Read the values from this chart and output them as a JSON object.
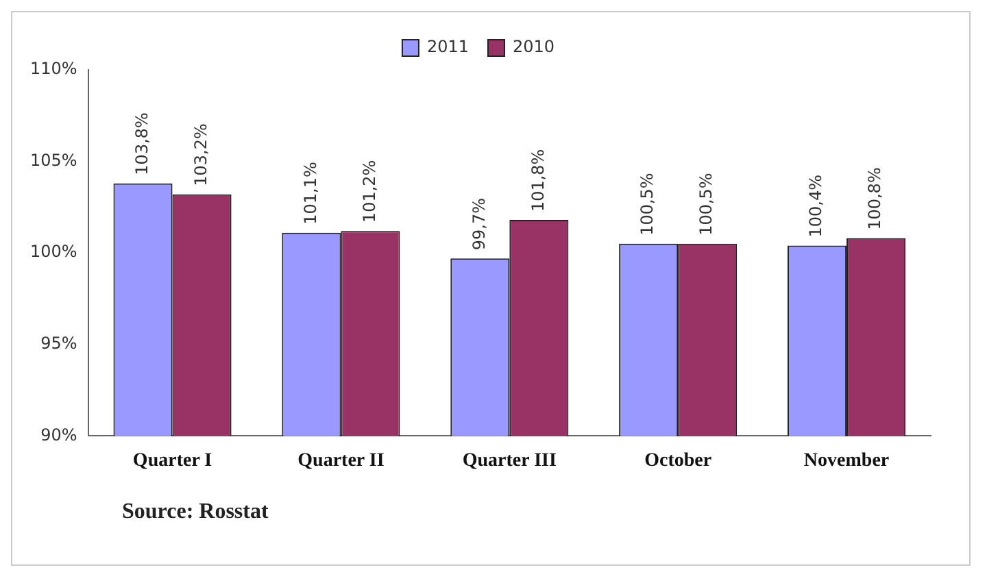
{
  "chart_data": {
    "type": "bar",
    "categories": [
      "Quarter I",
      "Quarter II",
      "Quarter III",
      "October",
      "November"
    ],
    "series": [
      {
        "name": "2011",
        "color": "#9999ff",
        "values": [
          103.8,
          101.1,
          99.7,
          100.5,
          100.4
        ],
        "value_labels": [
          "103,8%",
          "101,1%",
          "99,7%",
          "100,5%",
          "100,4%"
        ]
      },
      {
        "name": "2010",
        "color": "#993366",
        "values": [
          103.2,
          101.2,
          101.8,
          100.5,
          100.8
        ],
        "value_labels": [
          "103,2%",
          "101,2%",
          "101,8%",
          "100,5%",
          "100,8%"
        ]
      }
    ],
    "ylim": [
      90,
      110
    ],
    "yticks": [
      {
        "value": 90,
        "label": "90%"
      },
      {
        "value": 95,
        "label": "95%"
      },
      {
        "value": 100,
        "label": "100%"
      },
      {
        "value": 105,
        "label": "105%"
      },
      {
        "value": 110,
        "label": "110%"
      }
    ],
    "grid": false,
    "legend": "top",
    "annotations": [
      "Source: Rosstat"
    ]
  }
}
